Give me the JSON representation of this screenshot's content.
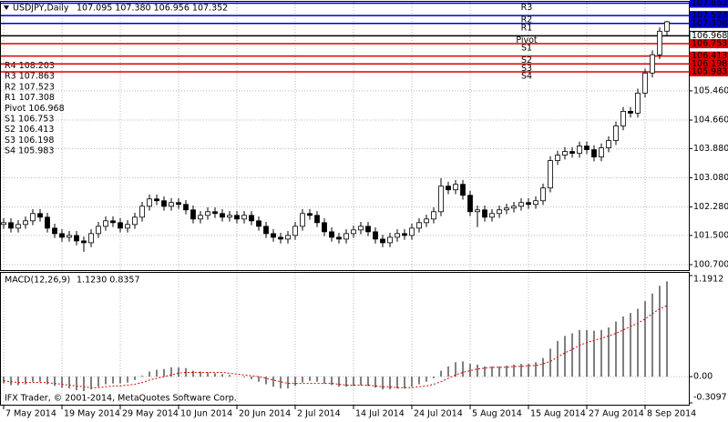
{
  "chart_data": [
    {
      "type": "candlestick",
      "title": "USDJPY,Daily",
      "ohlc_text": "107.095 107.380 106.956 107.352",
      "categories": [
        "7 May 2014",
        null,
        null,
        null,
        null,
        null,
        null,
        null,
        "19 May 2014",
        null,
        null,
        null,
        null,
        null,
        null,
        null,
        "29 May 2014",
        null,
        null,
        null,
        null,
        null,
        null,
        null,
        "10 Jun 2014",
        null,
        null,
        null,
        null,
        null,
        null,
        null,
        "20 Jun 2014",
        null,
        null,
        null,
        null,
        null,
        null,
        null,
        "2 Jul 2014",
        null,
        null,
        null,
        null,
        null,
        null,
        null,
        "14 Jul 2014",
        null,
        null,
        null,
        null,
        null,
        null,
        null,
        "24 Jul 2014",
        null,
        null,
        null,
        null,
        null,
        null,
        null,
        "5 Aug 2014",
        null,
        null,
        null,
        null,
        null,
        null,
        null,
        "15 Aug 2014",
        null,
        null,
        null,
        null,
        null,
        null,
        null,
        "27 Aug 2014",
        null,
        null,
        null,
        null,
        null,
        null,
        null,
        "8 Sep 2014",
        null,
        null,
        null
      ],
      "open": [
        101.8,
        101.85,
        101.7,
        101.8,
        101.9,
        102.1,
        102.0,
        101.7,
        101.55,
        101.45,
        101.5,
        101.35,
        101.3,
        101.55,
        101.75,
        101.9,
        101.85,
        101.7,
        101.8,
        102.0,
        102.3,
        102.5,
        102.45,
        102.3,
        102.4,
        102.35,
        102.2,
        101.95,
        102.05,
        102.15,
        102.1,
        102.0,
        102.05,
        101.95,
        102.05,
        101.9,
        101.75,
        101.55,
        101.45,
        101.4,
        101.5,
        101.75,
        102.1,
        102.05,
        101.85,
        101.6,
        101.45,
        101.4,
        101.55,
        101.65,
        101.75,
        101.6,
        101.4,
        101.3,
        101.45,
        101.55,
        101.5,
        101.7,
        101.85,
        101.95,
        102.15,
        102.85,
        102.75,
        102.9,
        102.6,
        102.15,
        102.2,
        102.0,
        102.1,
        102.2,
        102.25,
        102.3,
        102.4,
        102.35,
        102.45,
        102.8,
        103.55,
        103.7,
        103.8,
        103.75,
        103.95,
        103.85,
        103.65,
        103.9,
        104.1,
        104.5,
        104.9,
        104.85,
        105.4,
        105.95,
        106.45,
        107.095
      ],
      "high": [
        101.97,
        101.97,
        101.92,
        102.02,
        102.22,
        102.22,
        102.12,
        101.82,
        101.67,
        101.62,
        101.62,
        101.47,
        101.67,
        101.87,
        102.02,
        102.02,
        101.97,
        101.92,
        102.12,
        102.42,
        102.62,
        102.62,
        102.57,
        102.52,
        102.52,
        102.47,
        102.32,
        102.17,
        102.27,
        102.27,
        102.22,
        102.17,
        102.17,
        102.17,
        102.17,
        102.02,
        101.87,
        101.67,
        101.57,
        101.62,
        101.87,
        102.22,
        102.22,
        102.17,
        101.97,
        101.72,
        101.57,
        101.67,
        101.77,
        101.87,
        101.87,
        101.72,
        101.52,
        101.57,
        101.67,
        101.67,
        101.82,
        101.97,
        102.07,
        102.27,
        103.07,
        102.97,
        103.02,
        103.02,
        102.72,
        102.32,
        102.32,
        102.22,
        102.32,
        102.37,
        102.42,
        102.52,
        102.52,
        102.57,
        102.92,
        103.67,
        103.82,
        103.92,
        103.92,
        104.07,
        104.07,
        103.97,
        104.02,
        104.22,
        104.62,
        105.02,
        105.02,
        105.52,
        106.07,
        106.57,
        107.2,
        107.38
      ],
      "low": [
        101.68,
        101.58,
        101.58,
        101.68,
        101.78,
        101.88,
        101.58,
        101.43,
        101.33,
        101.33,
        101.23,
        101.05,
        101.18,
        101.43,
        101.63,
        101.73,
        101.58,
        101.58,
        101.68,
        101.88,
        102.18,
        102.33,
        102.18,
        102.18,
        102.23,
        102.08,
        101.83,
        101.83,
        101.93,
        101.98,
        101.88,
        101.88,
        101.83,
        101.83,
        101.78,
        101.63,
        101.43,
        101.33,
        101.28,
        101.28,
        101.38,
        101.63,
        101.93,
        101.73,
        101.48,
        101.33,
        101.28,
        101.28,
        101.43,
        101.53,
        101.48,
        101.28,
        101.18,
        101.18,
        101.33,
        101.38,
        101.38,
        101.58,
        101.73,
        101.83,
        102.03,
        102.63,
        102.63,
        102.48,
        102.03,
        101.73,
        101.88,
        101.88,
        101.98,
        102.08,
        102.13,
        102.18,
        102.23,
        102.23,
        102.33,
        102.68,
        103.43,
        103.58,
        103.63,
        103.63,
        103.73,
        103.53,
        103.53,
        103.78,
        103.98,
        104.38,
        104.73,
        104.73,
        105.28,
        105.83,
        106.33,
        106.956
      ],
      "close": [
        101.85,
        101.7,
        101.8,
        101.9,
        102.1,
        102.0,
        101.7,
        101.55,
        101.45,
        101.5,
        101.35,
        101.3,
        101.55,
        101.75,
        101.9,
        101.85,
        101.7,
        101.8,
        102.0,
        102.3,
        102.5,
        102.45,
        102.3,
        102.4,
        102.35,
        102.2,
        101.95,
        102.05,
        102.15,
        102.1,
        102.0,
        102.05,
        101.95,
        102.05,
        101.9,
        101.75,
        101.55,
        101.45,
        101.4,
        101.5,
        101.75,
        102.1,
        102.05,
        101.85,
        101.6,
        101.45,
        101.4,
        101.55,
        101.65,
        101.75,
        101.6,
        101.4,
        101.3,
        101.45,
        101.55,
        101.5,
        101.7,
        101.85,
        101.95,
        102.15,
        102.85,
        102.75,
        102.9,
        102.6,
        102.15,
        102.2,
        102.0,
        102.1,
        102.2,
        102.25,
        102.3,
        102.4,
        102.35,
        102.45,
        102.8,
        103.55,
        103.7,
        103.8,
        103.75,
        103.95,
        103.85,
        103.65,
        103.9,
        104.1,
        104.5,
        104.9,
        104.85,
        105.4,
        105.95,
        106.45,
        107.095,
        107.352
      ],
      "up_color": "#ffffff",
      "down_color": "#000000",
      "ylim": [
        100.55,
        107.9
      ],
      "yticks": [
        {
          "value": 100.7,
          "label": "100.700"
        },
        {
          "value": 101.5,
          "label": "101.500"
        },
        {
          "value": 102.28,
          "label": "102.280"
        },
        {
          "value": 103.08,
          "label": "103.080"
        },
        {
          "value": 103.88,
          "label": "103.880"
        },
        {
          "value": 104.66,
          "label": "104.660"
        },
        {
          "value": 105.46,
          "label": "105.460"
        }
      ],
      "grid": true,
      "levels": [
        {
          "name": "R4",
          "value": 108.203,
          "color": "#0000cc"
        },
        {
          "name": "R3",
          "value": 107.863,
          "color": "#0000cc"
        },
        {
          "name": "R2",
          "value": 107.523,
          "color": "#0000cc"
        },
        {
          "name": "R1",
          "value": 107.308,
          "color": "#0000cc"
        },
        {
          "name": "Pivot",
          "value": 106.968,
          "color": "#000000"
        },
        {
          "name": "S1",
          "value": 106.753,
          "color": "#dd0000"
        },
        {
          "name": "S2",
          "value": 106.413,
          "color": "#dd0000"
        },
        {
          "name": "S3",
          "value": 106.198,
          "color": "#dd0000"
        },
        {
          "name": "S4",
          "value": 105.983,
          "color": "#dd0000"
        }
      ]
    },
    {
      "type": "macd",
      "title": "MACD(12,26,9)",
      "values_text": "1.1230 0.8357",
      "histogram": {
        "color": "#000000",
        "values": [
          -0.08,
          -0.1,
          -0.1,
          -0.09,
          -0.06,
          -0.06,
          -0.09,
          -0.11,
          -0.13,
          -0.14,
          -0.16,
          -0.17,
          -0.15,
          -0.12,
          -0.09,
          -0.08,
          -0.08,
          -0.07,
          -0.04,
          0.01,
          0.06,
          0.08,
          0.09,
          0.11,
          0.11,
          0.1,
          0.07,
          0.06,
          0.05,
          0.04,
          0.03,
          0.02,
          0.0,
          -0.01,
          -0.03,
          -0.06,
          -0.09,
          -0.12,
          -0.14,
          -0.14,
          -0.11,
          -0.07,
          -0.05,
          -0.06,
          -0.08,
          -0.1,
          -0.12,
          -0.12,
          -0.11,
          -0.1,
          -0.11,
          -0.13,
          -0.15,
          -0.15,
          -0.14,
          -0.14,
          -0.12,
          -0.09,
          -0.06,
          -0.02,
          0.07,
          0.12,
          0.17,
          0.18,
          0.15,
          0.14,
          0.12,
          0.12,
          0.12,
          0.13,
          0.14,
          0.15,
          0.15,
          0.17,
          0.22,
          0.33,
          0.42,
          0.48,
          0.51,
          0.55,
          0.55,
          0.54,
          0.55,
          0.58,
          0.65,
          0.71,
          0.75,
          0.8,
          0.89,
          0.98,
          1.07,
          1.123
        ]
      },
      "signal": {
        "color": "#dd0000",
        "values": [
          -0.05,
          -0.06,
          -0.07,
          -0.07,
          -0.07,
          -0.07,
          -0.07,
          -0.08,
          -0.09,
          -0.1,
          -0.11,
          -0.12,
          -0.13,
          -0.13,
          -0.12,
          -0.11,
          -0.11,
          -0.1,
          -0.09,
          -0.07,
          -0.04,
          -0.02,
          0.0,
          0.02,
          0.04,
          0.05,
          0.05,
          0.05,
          0.05,
          0.05,
          0.05,
          0.04,
          0.03,
          0.02,
          0.01,
          0.0,
          -0.02,
          -0.04,
          -0.06,
          -0.08,
          -0.08,
          -0.08,
          -0.08,
          -0.08,
          -0.08,
          -0.08,
          -0.09,
          -0.1,
          -0.1,
          -0.1,
          -0.1,
          -0.11,
          -0.12,
          -0.12,
          -0.13,
          -0.13,
          -0.13,
          -0.12,
          -0.11,
          -0.09,
          -0.06,
          -0.02,
          0.02,
          0.05,
          0.07,
          0.09,
          0.1,
          0.11,
          0.11,
          0.11,
          0.12,
          0.12,
          0.13,
          0.13,
          0.15,
          0.18,
          0.23,
          0.28,
          0.32,
          0.37,
          0.4,
          0.43,
          0.45,
          0.48,
          0.51,
          0.55,
          0.59,
          0.63,
          0.68,
          0.74,
          0.8,
          0.8357
        ]
      },
      "ylim": [
        -0.3097,
        1.1912
      ],
      "yticks": [
        1.1912,
        {
          "value": 0,
          "label": "0.00"
        },
        -0.3097
      ],
      "grid": true,
      "footer": "IFX Trader, © 2001-2014, MetaQuotes Software Corp."
    }
  ]
}
